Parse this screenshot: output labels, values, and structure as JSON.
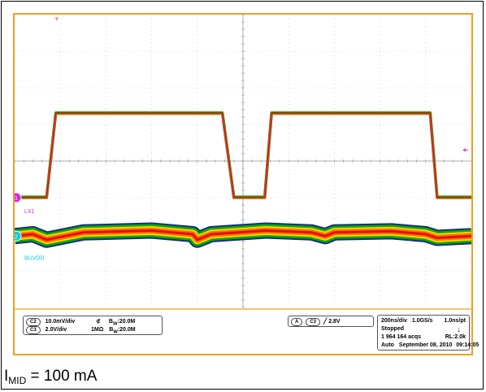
{
  "channels": {
    "c1": {
      "marker": "1",
      "label": "LX1",
      "color": "#e020e0"
    },
    "c2": {
      "marker": "2",
      "label": "BUVDD",
      "color": "#00c8e0"
    }
  },
  "trigger_mark": "▼",
  "channel_panel": {
    "row1": {
      "badge": "C2",
      "scale": "10.0mV/div",
      "coupling": "⊄",
      "bw": "B",
      "bw_sub": "W",
      "bw_value": ":20.0M"
    },
    "row2": {
      "badge": "C3",
      "scale": "2.0V/div",
      "coupling": "1MΩ",
      "bw": "B",
      "bw_sub": "W",
      "bw_value": ":20.0M"
    }
  },
  "trigger_panel": {
    "mode": "A",
    "source": "C3",
    "slope": "╱",
    "level": "2.8V"
  },
  "acquisition_panel": {
    "timebase": "200ns/div",
    "sample_rate": "1.0GS/s",
    "resolution": "1.0ns/pt",
    "state": "Stopped",
    "acqs": "1 964 164 acqs",
    "record_length": "RL:2.0k",
    "trigger_mode": "Auto",
    "date": "September 08, 2010",
    "time": "09:14:05"
  },
  "caption": {
    "symbol": "I",
    "subscript": "MID",
    "text": " = 100 mA"
  },
  "chart_data": {
    "type": "line",
    "x_unit": "ns",
    "x_range": [
      0,
      2000
    ],
    "series": [
      {
        "name": "LX1",
        "description_values": "switch node square wave, levels in divisions",
        "x": [
          0,
          110,
          140,
          180,
          890,
          910,
          960,
          1095,
          1125,
          1170,
          1820,
          1850,
          1880,
          2000
        ],
        "y_div": [
          -1.0,
          -1.0,
          -1.0,
          1.3,
          1.3,
          1.3,
          -1.0,
          -1.0,
          1.3,
          1.3,
          1.3,
          -1.0,
          -1.0,
          -1.0
        ]
      },
      {
        "name": "BUVDD",
        "description_values": "output ripple band center, divisions",
        "x": [
          0,
          80,
          140,
          300,
          600,
          780,
          800,
          860,
          1100,
          1300,
          1360,
          1400,
          1650,
          1800,
          1850,
          2000
        ],
        "y_div": [
          -2.05,
          -2.0,
          -2.15,
          -1.95,
          -1.9,
          -2.0,
          -2.15,
          -2.0,
          -1.9,
          -1.95,
          -2.05,
          -1.95,
          -1.92,
          -2.0,
          -2.1,
          -2.05
        ]
      }
    ],
    "grid": true,
    "divisions": {
      "x": 10,
      "y": 8
    }
  }
}
